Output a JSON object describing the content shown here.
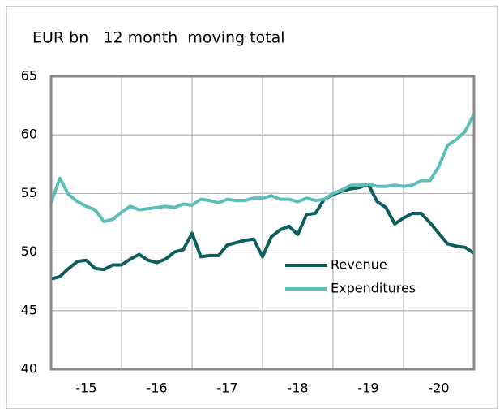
{
  "chart_data": {
    "type": "line",
    "title": "EUR bn   12 month  moving total",
    "x": [
      2015,
      2015.125,
      2015.25,
      2015.375,
      2015.5,
      2015.625,
      2015.75,
      2015.875,
      2016,
      2016.125,
      2016.25,
      2016.375,
      2016.5,
      2016.625,
      2016.75,
      2016.875,
      2017,
      2017.125,
      2017.25,
      2017.375,
      2017.5,
      2017.625,
      2017.75,
      2017.875,
      2018,
      2018.125,
      2018.25,
      2018.375,
      2018.5,
      2018.625,
      2018.75,
      2018.875,
      2019,
      2019.125,
      2019.25,
      2019.375,
      2019.5,
      2019.625,
      2019.75,
      2019.875,
      2020,
      2020.125,
      2020.25,
      2020.375,
      2020.5,
      2020.625,
      2020.75,
      2020.875,
      2021
    ],
    "series": [
      {
        "name": "Revenue",
        "color": "#0e5e5b",
        "values": [
          47.7,
          47.9,
          48.6,
          49.2,
          49.3,
          48.6,
          48.5,
          48.9,
          48.9,
          49.4,
          49.8,
          49.3,
          49.1,
          49.4,
          50.0,
          50.2,
          51.6,
          49.6,
          49.7,
          49.7,
          50.6,
          50.8,
          51.0,
          51.1,
          49.6,
          51.3,
          51.9,
          52.2,
          51.5,
          53.2,
          53.3,
          54.5,
          54.9,
          55.2,
          55.4,
          55.5,
          55.8,
          54.3,
          53.8,
          52.4,
          52.9,
          53.3,
          53.3,
          52.5,
          51.6,
          50.7,
          50.5,
          50.4,
          49.9
        ]
      },
      {
        "name": "Expenditures",
        "color": "#5cc0b8",
        "values": [
          54.2,
          56.3,
          54.9,
          54.3,
          53.9,
          53.6,
          52.6,
          52.8,
          53.4,
          53.9,
          53.6,
          53.7,
          53.8,
          53.9,
          53.8,
          54.1,
          54.0,
          54.5,
          54.4,
          54.2,
          54.5,
          54.4,
          54.4,
          54.6,
          54.6,
          54.8,
          54.5,
          54.5,
          54.3,
          54.6,
          54.4,
          54.5,
          55.0,
          55.3,
          55.7,
          55.7,
          55.8,
          55.6,
          55.6,
          55.7,
          55.6,
          55.7,
          56.1,
          56.1,
          57.3,
          59.1,
          59.6,
          60.3,
          61.8
        ]
      }
    ],
    "xlim": [
      2015,
      2021
    ],
    "xticks": [
      {
        "value": 2015.5,
        "label": "-15"
      },
      {
        "value": 2016.5,
        "label": "-16"
      },
      {
        "value": 2017.5,
        "label": "-17"
      },
      {
        "value": 2018.5,
        "label": "-18"
      },
      {
        "value": 2019.5,
        "label": "-19"
      },
      {
        "value": 2020.5,
        "label": "-20"
      }
    ],
    "xgrid": [
      2016,
      2017,
      2018,
      2019,
      2020
    ],
    "ylim": [
      40,
      65
    ],
    "yticks": [
      40,
      45,
      50,
      55,
      60,
      65
    ],
    "grid": true
  }
}
